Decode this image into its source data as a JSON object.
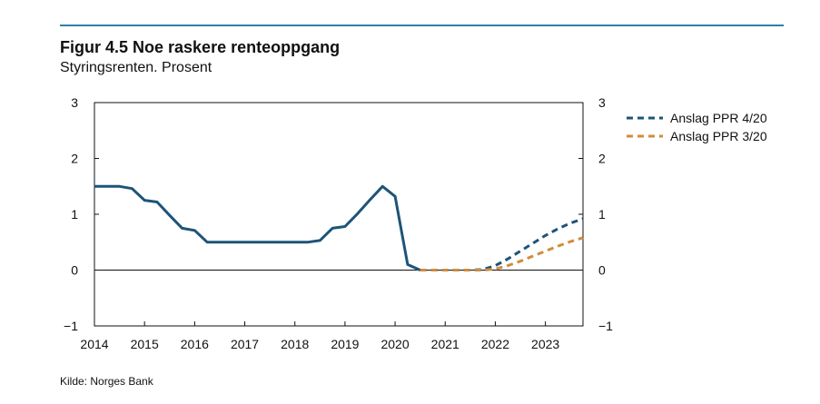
{
  "figure": {
    "title": "Figur 4.5 Noe raskere renteoppgang",
    "subtitle": "Styringsrenten. Prosent",
    "source": "Kilde: Norges Bank"
  },
  "colors": {
    "rule": "#2e7fa6",
    "actual": "#1d5479",
    "ppr420": "#1d5479",
    "ppr320": "#d08c3c",
    "axis": "#111111"
  },
  "legend": {
    "items": [
      {
        "label": "Anslag PPR 4/20",
        "color": "#1d5479"
      },
      {
        "label": "Anslag PPR 3/20",
        "color": "#d08c3c"
      }
    ]
  },
  "chart_data": {
    "type": "line",
    "title": "Figur 4.5 Noe raskere renteoppgang",
    "subtitle": "Styringsrenten. Prosent",
    "xlabel": "",
    "ylabel": "",
    "xlim": [
      2014.0,
      2023.75
    ],
    "ylim": [
      -1,
      3
    ],
    "yticks": [
      "3",
      "2",
      "1",
      "0",
      "−1"
    ],
    "yticks_values": [
      3,
      2,
      1,
      0,
      -1
    ],
    "xticks": [
      "2014",
      "2015",
      "2016",
      "2017",
      "2018",
      "2019",
      "2020",
      "2021",
      "2022",
      "2023"
    ],
    "xticks_values": [
      2014,
      2015,
      2016,
      2017,
      2018,
      2019,
      2020,
      2021,
      2022,
      2023
    ],
    "grid": false,
    "legend_position": "top-right",
    "series": [
      {
        "style": "solid",
        "color": "#1d5479",
        "points": [
          [
            2014.0,
            1.5
          ],
          [
            2014.5,
            1.5
          ],
          [
            2014.75,
            1.46
          ],
          [
            2015.0,
            1.25
          ],
          [
            2015.25,
            1.22
          ],
          [
            2015.5,
            0.98
          ],
          [
            2015.75,
            0.75
          ],
          [
            2016.0,
            0.71
          ],
          [
            2016.25,
            0.5
          ],
          [
            2016.5,
            0.5
          ],
          [
            2017.0,
            0.5
          ],
          [
            2017.5,
            0.5
          ],
          [
            2018.0,
            0.5
          ],
          [
            2018.25,
            0.5
          ],
          [
            2018.5,
            0.53
          ],
          [
            2018.75,
            0.75
          ],
          [
            2019.0,
            0.78
          ],
          [
            2019.25,
            1.01
          ],
          [
            2019.5,
            1.26
          ],
          [
            2019.75,
            1.5
          ],
          [
            2020.0,
            1.32
          ],
          [
            2020.25,
            0.1
          ],
          [
            2020.5,
            0.0
          ]
        ]
      },
      {
        "name": "Anslag PPR 4/20",
        "style": "dashed",
        "color": "#1d5479",
        "points": [
          [
            2020.5,
            0.0
          ],
          [
            2021.0,
            0.0
          ],
          [
            2021.5,
            0.0
          ],
          [
            2021.75,
            0.01
          ],
          [
            2022.0,
            0.08
          ],
          [
            2022.25,
            0.2
          ],
          [
            2022.5,
            0.34
          ],
          [
            2022.75,
            0.48
          ],
          [
            2023.0,
            0.62
          ],
          [
            2023.25,
            0.74
          ],
          [
            2023.5,
            0.84
          ],
          [
            2023.75,
            0.92
          ]
        ]
      },
      {
        "name": "Anslag PPR 3/20",
        "style": "dashed",
        "color": "#d08c3c",
        "points": [
          [
            2020.5,
            0.0
          ],
          [
            2021.0,
            0.0
          ],
          [
            2021.5,
            0.0
          ],
          [
            2021.75,
            0.0
          ],
          [
            2022.0,
            0.02
          ],
          [
            2022.25,
            0.08
          ],
          [
            2022.5,
            0.16
          ],
          [
            2022.75,
            0.25
          ],
          [
            2023.0,
            0.34
          ],
          [
            2023.25,
            0.43
          ],
          [
            2023.5,
            0.51
          ],
          [
            2023.75,
            0.58
          ]
        ]
      }
    ]
  }
}
